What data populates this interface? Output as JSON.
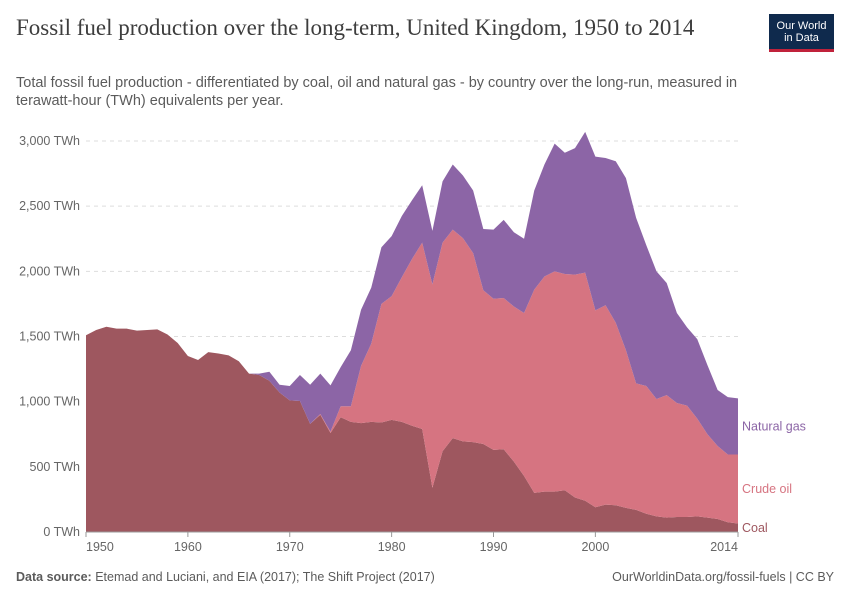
{
  "title": "Fossil fuel production over the long-term, United Kingdom, 1950 to 2014",
  "subtitle": "Total fossil fuel production - differentiated by coal, oil and natural gas - by country over the long-run, measured in terawatt-hour (TWh) equivalents per year.",
  "logo": {
    "line1": "Our World",
    "line2": "in Data"
  },
  "footer": {
    "source_label": "Data source:",
    "source_text": "Etemad and Luciani, and EIA (2017); The Shift Project (2017)",
    "right_text": "OurWorldinData.org/fossil-fuels | CC BY"
  },
  "chart_data": {
    "type": "area",
    "stacked": true,
    "x": [
      1950,
      1951,
      1952,
      1953,
      1954,
      1955,
      1956,
      1957,
      1958,
      1959,
      1960,
      1961,
      1962,
      1963,
      1964,
      1965,
      1966,
      1967,
      1968,
      1969,
      1970,
      1971,
      1972,
      1973,
      1974,
      1975,
      1976,
      1977,
      1978,
      1979,
      1980,
      1981,
      1982,
      1983,
      1984,
      1985,
      1986,
      1987,
      1988,
      1989,
      1990,
      1991,
      1992,
      1993,
      1994,
      1995,
      1996,
      1997,
      1998,
      1999,
      2000,
      2001,
      2002,
      2003,
      2004,
      2005,
      2006,
      2007,
      2008,
      2009,
      2010,
      2011,
      2012,
      2013,
      2014
    ],
    "xlim": [
      1950,
      2014
    ],
    "x_ticks": [
      1950,
      1960,
      1970,
      1980,
      1990,
      2000,
      2014
    ],
    "ylim": [
      0,
      3000
    ],
    "y_ticks": [
      0,
      500,
      1000,
      1500,
      2000,
      2500,
      3000
    ],
    "y_tick_labels": [
      "0 TWh",
      "500 TWh",
      "1,000 TWh",
      "1,500 TWh",
      "2,000 TWh",
      "2,500 TWh",
      "3,000 TWh"
    ],
    "grid": true,
    "series": [
      {
        "name": "Coal",
        "color": "#9e575f",
        "values": [
          1510,
          1550,
          1575,
          1560,
          1560,
          1545,
          1550,
          1555,
          1515,
          1450,
          1350,
          1320,
          1380,
          1370,
          1355,
          1310,
          1215,
          1205,
          1160,
          1070,
          1010,
          1005,
          830,
          900,
          760,
          880,
          845,
          835,
          845,
          840,
          860,
          845,
          815,
          790,
          340,
          620,
          720,
          695,
          690,
          675,
          630,
          635,
          540,
          430,
          300,
          310,
          310,
          320,
          265,
          240,
          190,
          210,
          205,
          185,
          170,
          140,
          120,
          110,
          115,
          115,
          120,
          110,
          100,
          75,
          65
        ]
      },
      {
        "name": "Crude oil",
        "color": "#d67481",
        "values": [
          0,
          0,
          0,
          0,
          0,
          0,
          0,
          0,
          0,
          0,
          0,
          0,
          0,
          0,
          0,
          0,
          0,
          0,
          0,
          0,
          0,
          0,
          0,
          5,
          10,
          85,
          120,
          440,
          600,
          910,
          950,
          1110,
          1280,
          1430,
          1560,
          1600,
          1600,
          1560,
          1450,
          1180,
          1160,
          1160,
          1190,
          1250,
          1560,
          1650,
          1690,
          1660,
          1710,
          1750,
          1510,
          1530,
          1400,
          1210,
          970,
          980,
          900,
          940,
          875,
          855,
          750,
          640,
          560,
          520,
          530
        ]
      },
      {
        "name": "Natural gas",
        "color": "#8c65a6",
        "values": [
          0,
          0,
          0,
          0,
          0,
          0,
          0,
          0,
          0,
          0,
          0,
          0,
          0,
          0,
          0,
          0,
          0,
          10,
          70,
          60,
          110,
          200,
          300,
          310,
          355,
          300,
          430,
          430,
          430,
          435,
          460,
          470,
          450,
          440,
          410,
          470,
          500,
          480,
          480,
          470,
          530,
          600,
          570,
          570,
          760,
          860,
          980,
          930,
          970,
          1080,
          1180,
          1130,
          1240,
          1320,
          1270,
          1080,
          980,
          860,
          690,
          600,
          610,
          530,
          430,
          440,
          430
        ]
      }
    ]
  }
}
